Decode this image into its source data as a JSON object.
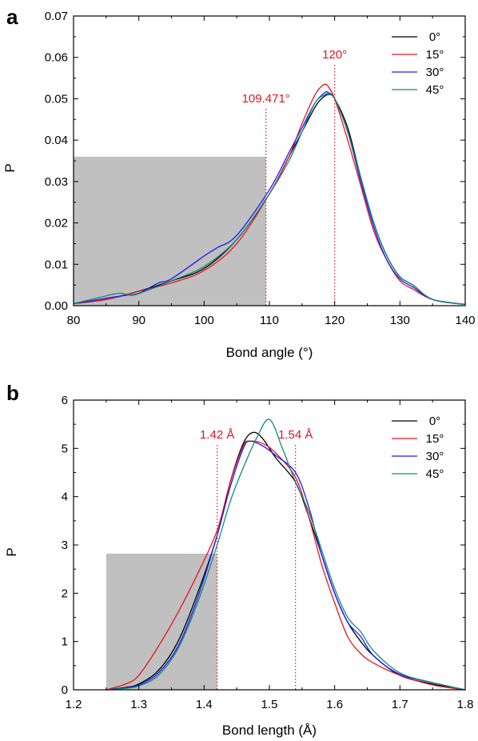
{
  "chart_data": [
    {
      "panel_label": "a",
      "type": "line",
      "xlabel": "Bond angle (°)",
      "ylabel": "P",
      "xlim": [
        80,
        140
      ],
      "ylim": [
        0,
        0.07
      ],
      "xticks": [
        "80",
        "90",
        "100",
        "110",
        "120",
        "130",
        "140"
      ],
      "yticks": [
        "0.00",
        "0.01",
        "0.02",
        "0.03",
        "0.04",
        "0.05",
        "0.06",
        "0.07"
      ],
      "legend_position": "top-right",
      "grid": false,
      "shaded_region": {
        "x": [
          80,
          109.471
        ],
        "y": [
          0,
          0.036
        ],
        "color": "#c0c0c0"
      },
      "reference_lines": [
        {
          "x": 109.471,
          "label": "109.471°",
          "color": "#e8141c"
        },
        {
          "x": 120,
          "label": "120°",
          "color": "#e8141c"
        }
      ],
      "series": [
        {
          "name": "0°",
          "color": "#000000",
          "x": [
            80,
            85,
            90,
            95,
            100,
            105,
            110,
            113,
            115,
            117,
            118,
            119,
            120,
            122,
            124,
            126,
            128,
            130,
            132,
            135,
            140
          ],
          "y": [
            0.0005,
            0.0015,
            0.0035,
            0.006,
            0.009,
            0.016,
            0.027,
            0.036,
            0.042,
            0.048,
            0.05,
            0.051,
            0.05,
            0.043,
            0.031,
            0.02,
            0.012,
            0.007,
            0.005,
            0.0015,
            0.0003
          ]
        },
        {
          "name": "15°",
          "color": "#e8141c",
          "x": [
            80,
            85,
            90,
            95,
            100,
            105,
            110,
            113,
            115,
            117,
            118,
            118.5,
            119,
            120,
            122,
            124,
            126,
            128,
            130,
            132,
            135,
            140
          ],
          "y": [
            0.0005,
            0.0015,
            0.0035,
            0.0055,
            0.0085,
            0.015,
            0.027,
            0.036,
            0.044,
            0.051,
            0.053,
            0.0535,
            0.053,
            0.05,
            0.04,
            0.029,
            0.018,
            0.011,
            0.006,
            0.004,
            0.0015,
            0.0003
          ]
        },
        {
          "name": "30°",
          "color": "#1a1aff",
          "x": [
            80,
            85,
            88,
            90,
            93,
            95,
            100,
            102,
            105,
            110,
            113,
            115,
            117,
            118.5,
            119,
            120,
            122,
            124,
            126,
            128,
            130,
            132,
            135,
            140
          ],
          "y": [
            0.0005,
            0.0018,
            0.0025,
            0.003,
            0.0055,
            0.0065,
            0.012,
            0.014,
            0.017,
            0.028,
            0.037,
            0.043,
            0.049,
            0.0515,
            0.0515,
            0.05,
            0.042,
            0.03,
            0.019,
            0.011,
            0.0065,
            0.0045,
            0.0015,
            0.0003
          ]
        },
        {
          "name": "45°",
          "color": "#128a7a",
          "x": [
            80,
            84,
            87,
            89,
            91,
            95,
            100,
            105,
            110,
            113,
            115,
            117,
            118.5,
            119,
            120,
            122,
            124,
            126,
            128,
            130,
            132,
            135,
            140
          ],
          "y": [
            0.0005,
            0.002,
            0.003,
            0.0025,
            0.0035,
            0.006,
            0.0095,
            0.016,
            0.027,
            0.035,
            0.042,
            0.049,
            0.051,
            0.0512,
            0.05,
            0.042,
            0.031,
            0.02,
            0.012,
            0.007,
            0.005,
            0.0015,
            0.0003
          ]
        }
      ]
    },
    {
      "panel_label": "b",
      "type": "line",
      "xlabel": "Bond length (Å)",
      "ylabel": "P",
      "xlim": [
        1.2,
        1.8
      ],
      "ylim": [
        0,
        6
      ],
      "xticks": [
        "1.2",
        "1.3",
        "1.4",
        "1.5",
        "1.6",
        "1.7",
        "1.8"
      ],
      "yticks": [
        "0",
        "1",
        "2",
        "3",
        "4",
        "5",
        "6"
      ],
      "legend_position": "top-right",
      "grid": false,
      "shaded_region": {
        "x": [
          1.25,
          1.42
        ],
        "y": [
          0,
          2.82
        ],
        "color": "#c0c0c0"
      },
      "reference_lines": [
        {
          "x": 1.42,
          "label": "1.42 Å",
          "color": "#e8141c"
        },
        {
          "x": 1.54,
          "label": "1.54 Å",
          "color": "#e8141c"
        }
      ],
      "series": [
        {
          "name": "0°",
          "color": "#000000",
          "x": [
            1.25,
            1.28,
            1.3,
            1.33,
            1.36,
            1.39,
            1.42,
            1.44,
            1.46,
            1.475,
            1.49,
            1.51,
            1.54,
            1.56,
            1.58,
            1.6,
            1.62,
            1.64,
            1.66,
            1.7,
            1.75,
            1.8
          ],
          "y": [
            0.0,
            0.05,
            0.12,
            0.4,
            1.0,
            2.0,
            3.2,
            4.3,
            5.1,
            5.33,
            5.2,
            4.8,
            4.3,
            3.6,
            2.8,
            2.0,
            1.4,
            1.0,
            0.7,
            0.3,
            0.12,
            0.0
          ]
        },
        {
          "name": "15°",
          "color": "#e8141c",
          "x": [
            1.25,
            1.28,
            1.3,
            1.33,
            1.36,
            1.39,
            1.42,
            1.44,
            1.46,
            1.47,
            1.49,
            1.51,
            1.54,
            1.56,
            1.58,
            1.6,
            1.62,
            1.64,
            1.66,
            1.7,
            1.75,
            1.8
          ],
          "y": [
            0.0,
            0.12,
            0.3,
            0.9,
            1.6,
            2.4,
            3.3,
            4.3,
            5.05,
            5.15,
            5.1,
            4.9,
            4.4,
            3.6,
            2.6,
            1.8,
            1.1,
            0.75,
            0.55,
            0.3,
            0.1,
            0.0
          ]
        },
        {
          "name": "30°",
          "color": "#1a1aff",
          "x": [
            1.25,
            1.28,
            1.3,
            1.33,
            1.36,
            1.39,
            1.42,
            1.44,
            1.46,
            1.47,
            1.49,
            1.51,
            1.54,
            1.56,
            1.58,
            1.6,
            1.62,
            1.64,
            1.66,
            1.7,
            1.75,
            1.8
          ],
          "y": [
            0.0,
            0.04,
            0.1,
            0.35,
            0.9,
            1.9,
            3.2,
            4.2,
            5.0,
            5.15,
            5.05,
            4.85,
            4.5,
            3.8,
            2.8,
            2.0,
            1.4,
            1.1,
            0.7,
            0.32,
            0.15,
            0.0
          ]
        },
        {
          "name": "45°",
          "color": "#128a7a",
          "x": [
            1.25,
            1.28,
            1.3,
            1.33,
            1.36,
            1.39,
            1.42,
            1.44,
            1.46,
            1.48,
            1.5,
            1.52,
            1.54,
            1.56,
            1.58,
            1.6,
            1.62,
            1.64,
            1.66,
            1.7,
            1.75,
            1.8
          ],
          "y": [
            0.0,
            0.03,
            0.08,
            0.3,
            0.85,
            1.8,
            3.0,
            3.9,
            4.6,
            5.2,
            5.6,
            5.0,
            4.3,
            3.7,
            2.9,
            2.1,
            1.5,
            1.2,
            0.8,
            0.35,
            0.15,
            0.0
          ]
        }
      ]
    }
  ]
}
